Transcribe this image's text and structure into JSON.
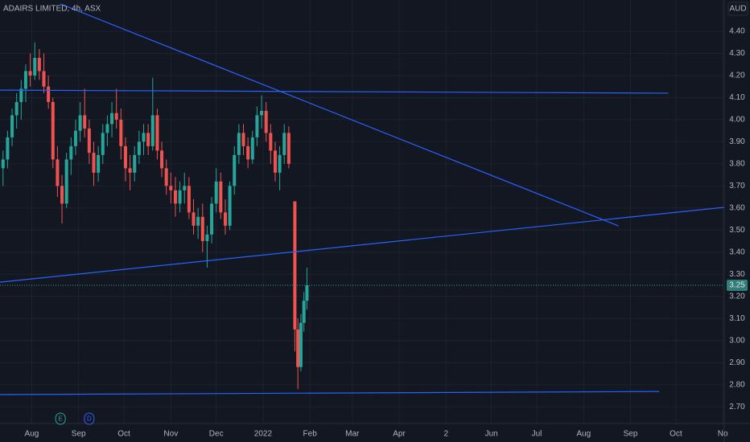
{
  "chart_data": {
    "type": "candlestick",
    "title": "ADAIRS LIMITED, 4h, ASX",
    "currency": "AUD",
    "up_color": "#26a69a",
    "down_color": "#ef5350",
    "trendline_color": "#2962ff",
    "xlim": [
      "2021-07-11",
      "2022-11-02"
    ],
    "ylim": [
      2.624,
      4.542
    ],
    "grid": true,
    "yticks": [
      {
        "value": 2.7,
        "label": "2.70"
      },
      {
        "value": 2.8,
        "label": "2.80"
      },
      {
        "value": 2.9,
        "label": "2.90"
      },
      {
        "value": 3.0,
        "label": "3.00"
      },
      {
        "value": 3.1,
        "label": "3.10"
      },
      {
        "value": 3.2,
        "label": "3.20"
      },
      {
        "value": 3.3,
        "label": "3.30"
      },
      {
        "value": 3.4,
        "label": "3.40"
      },
      {
        "value": 3.5,
        "label": "3.50"
      },
      {
        "value": 3.6,
        "label": "3.60"
      },
      {
        "value": 3.7,
        "label": "3.70"
      },
      {
        "value": 3.8,
        "label": "3.80"
      },
      {
        "value": 3.9,
        "label": "3.90"
      },
      {
        "value": 4.0,
        "label": "4.00"
      },
      {
        "value": 4.1,
        "label": "4.10"
      },
      {
        "value": 4.2,
        "label": "4.20"
      },
      {
        "value": 4.3,
        "label": "4.30"
      },
      {
        "value": 4.4,
        "label": "4.40"
      }
    ],
    "xticks": [
      {
        "value": "2021-08-01",
        "label": "Aug"
      },
      {
        "value": "2021-09-01",
        "label": "Sep"
      },
      {
        "value": "2021-10-01",
        "label": "Oct"
      },
      {
        "value": "2021-11-01",
        "label": "Nov"
      },
      {
        "value": "2021-12-01",
        "label": "Dec"
      },
      {
        "value": "2022-01-01",
        "label": "2022"
      },
      {
        "value": "2022-02-01",
        "label": "Feb"
      },
      {
        "value": "2022-03-01",
        "label": "Mar"
      },
      {
        "value": "2022-04-01",
        "label": "Apr"
      },
      {
        "value": "2022-05-02",
        "label": "2"
      },
      {
        "value": "2022-06-01",
        "label": "Jun"
      },
      {
        "value": "2022-07-01",
        "label": "Jul"
      },
      {
        "value": "2022-08-01",
        "label": "Aug"
      },
      {
        "value": "2022-09-01",
        "label": "Sep"
      },
      {
        "value": "2022-10-01",
        "label": "Oct"
      },
      {
        "value": "2022-11-01",
        "label": "No"
      }
    ],
    "candles": {
      "x": [
        "2021-07-13",
        "2021-07-16",
        "2021-07-19",
        "2021-07-22",
        "2021-07-25",
        "2021-07-28",
        "2021-07-31",
        "2021-08-03",
        "2021-08-06",
        "2021-08-09",
        "2021-08-12",
        "2021-08-15",
        "2021-08-18",
        "2021-08-21",
        "2021-08-24",
        "2021-08-27",
        "2021-08-30",
        "2021-09-02",
        "2021-09-05",
        "2021-09-08",
        "2021-09-11",
        "2021-09-14",
        "2021-09-17",
        "2021-09-20",
        "2021-09-23",
        "2021-09-26",
        "2021-09-29",
        "2021-10-02",
        "2021-10-05",
        "2021-10-08",
        "2021-10-11",
        "2021-10-14",
        "2021-10-17",
        "2021-10-20",
        "2021-10-23",
        "2021-10-26",
        "2021-10-29",
        "2021-11-01",
        "2021-11-04",
        "2021-11-07",
        "2021-11-10",
        "2021-11-13",
        "2021-11-16",
        "2021-11-19",
        "2021-11-22",
        "2021-11-25",
        "2021-11-28",
        "2021-12-01",
        "2021-12-04",
        "2021-12-07",
        "2021-12-10",
        "2021-12-13",
        "2021-12-16",
        "2021-12-19",
        "2021-12-22",
        "2021-12-25",
        "2021-12-28",
        "2021-12-31",
        "2022-01-03",
        "2022-01-06",
        "2022-01-09",
        "2022-01-12",
        "2022-01-15",
        "2022-01-18",
        "2022-01-22",
        "2022-01-24",
        "2022-01-26",
        "2022-01-28",
        "2022-01-30"
      ],
      "open": [
        3.78,
        3.82,
        3.92,
        4.02,
        4.08,
        4.14,
        4.22,
        4.2,
        4.28,
        4.22,
        4.15,
        4.08,
        3.82,
        3.7,
        3.62,
        3.82,
        3.88,
        3.95,
        4.02,
        3.96,
        3.85,
        3.76,
        3.84,
        3.94,
        3.98,
        4.03,
        4.0,
        3.88,
        3.78,
        3.76,
        3.84,
        3.9,
        3.94,
        3.88,
        4.02,
        3.86,
        3.78,
        3.7,
        3.68,
        3.62,
        3.68,
        3.7,
        3.58,
        3.52,
        3.56,
        3.45,
        3.48,
        3.62,
        3.72,
        3.58,
        3.52,
        3.7,
        3.84,
        3.94,
        3.88,
        3.82,
        3.92,
        4.02,
        4.04,
        3.94,
        3.86,
        3.76,
        3.84,
        3.94,
        3.63,
        3.05,
        2.88,
        3.08,
        3.18
      ],
      "high": [
        3.86,
        3.95,
        4.05,
        4.12,
        4.18,
        4.25,
        4.3,
        4.35,
        4.32,
        4.3,
        4.2,
        4.1,
        3.88,
        3.75,
        3.85,
        3.92,
        4.0,
        4.08,
        4.14,
        4.0,
        3.9,
        3.88,
        3.98,
        4.02,
        4.08,
        4.14,
        4.05,
        3.92,
        3.84,
        3.88,
        3.95,
        3.98,
        3.98,
        4.19,
        4.05,
        3.9,
        3.82,
        3.76,
        3.74,
        3.72,
        3.76,
        3.74,
        3.64,
        3.6,
        3.62,
        3.52,
        3.65,
        3.78,
        3.76,
        3.64,
        3.72,
        3.88,
        3.98,
        3.98,
        3.92,
        3.95,
        4.06,
        4.11,
        4.08,
        3.98,
        3.9,
        3.88,
        3.98,
        3.97,
        3.63,
        3.1,
        3.12,
        3.22,
        3.33
      ],
      "low": [
        3.7,
        3.78,
        3.88,
        3.96,
        4.0,
        4.08,
        4.15,
        4.18,
        4.18,
        4.12,
        4.05,
        3.78,
        3.65,
        3.53,
        3.6,
        3.75,
        3.84,
        3.9,
        3.92,
        3.8,
        3.7,
        3.72,
        3.8,
        3.88,
        3.92,
        3.96,
        3.82,
        3.72,
        3.68,
        3.72,
        3.8,
        3.84,
        3.84,
        3.86,
        3.82,
        3.74,
        3.66,
        3.62,
        3.56,
        3.58,
        3.62,
        3.55,
        3.48,
        3.46,
        3.4,
        3.33,
        3.44,
        3.58,
        3.55,
        3.48,
        3.5,
        3.66,
        3.8,
        3.84,
        3.78,
        3.8,
        3.88,
        3.96,
        3.9,
        3.8,
        3.72,
        3.68,
        3.8,
        3.78,
        2.95,
        2.78,
        2.86,
        3.04,
        3.14
      ],
      "close": [
        3.82,
        3.92,
        4.02,
        4.08,
        4.14,
        4.22,
        4.2,
        4.28,
        4.22,
        4.15,
        4.08,
        3.82,
        3.7,
        3.62,
        3.82,
        3.88,
        3.95,
        4.02,
        3.96,
        3.85,
        3.76,
        3.84,
        3.94,
        3.98,
        4.03,
        4.0,
        3.88,
        3.78,
        3.76,
        3.84,
        3.9,
        3.94,
        3.88,
        4.02,
        3.86,
        3.78,
        3.7,
        3.68,
        3.62,
        3.68,
        3.7,
        3.58,
        3.52,
        3.56,
        3.45,
        3.48,
        3.62,
        3.72,
        3.58,
        3.52,
        3.7,
        3.84,
        3.94,
        3.88,
        3.82,
        3.92,
        4.02,
        4.04,
        3.94,
        3.86,
        3.76,
        3.84,
        3.94,
        3.8,
        3.05,
        2.88,
        3.08,
        3.18,
        3.25
      ]
    },
    "last_price": 3.25,
    "trendlines": [
      {
        "x": [
          "2021-08-20",
          "2022-08-24"
        ],
        "y": [
          4.524,
          3.519
        ]
      },
      {
        "x": [
          "2021-07-11",
          "2022-09-26"
        ],
        "y": [
          4.134,
          4.12
        ]
      },
      {
        "x": [
          "2021-07-11",
          "2022-11-02"
        ],
        "y": [
          3.264,
          3.603
        ]
      },
      {
        "x": [
          "2021-07-11",
          "2022-09-20"
        ],
        "y": [
          2.755,
          2.769
        ]
      }
    ],
    "events": [
      {
        "label": "E",
        "x": "2021-08-20",
        "color": "#26a69a"
      },
      {
        "label": "D",
        "x": "2021-09-08",
        "color": "#2962ff"
      }
    ]
  }
}
